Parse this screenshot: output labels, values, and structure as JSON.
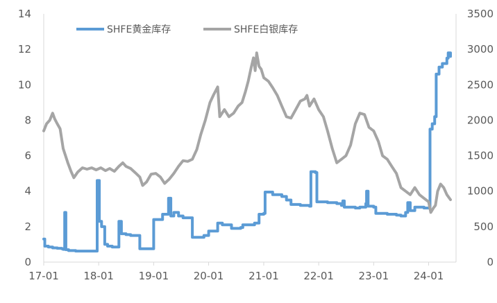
{
  "chart_data": {
    "type": "line",
    "title": "",
    "x_ticks": [
      "17-01",
      "18-01",
      "19-01",
      "20-01",
      "21-01",
      "22-01",
      "23-01",
      "24-01"
    ],
    "y_left": {
      "label": "",
      "range": [
        0,
        14
      ],
      "ticks": [
        0,
        2,
        4,
        6,
        8,
        10,
        12,
        14
      ]
    },
    "y_right": {
      "label": "",
      "range": [
        0,
        3500
      ],
      "ticks": [
        0,
        500,
        1000,
        1500,
        2000,
        2500,
        3000,
        3500
      ]
    },
    "legend_position": "top",
    "grid": false,
    "series": [
      {
        "name": "SHFE黄金库存",
        "axis": "left",
        "color": "#5B9BD5",
        "points": [
          [
            "2017-01-01",
            1.3
          ],
          [
            "2017-01-08",
            0.9
          ],
          [
            "2017-02-01",
            0.85
          ],
          [
            "2017-03-01",
            0.8
          ],
          [
            "2017-04-01",
            0.78
          ],
          [
            "2017-05-01",
            0.75
          ],
          [
            "2017-05-10",
            0.72
          ],
          [
            "2017-05-20",
            2.8
          ],
          [
            "2017-05-28",
            0.7
          ],
          [
            "2017-06-15",
            0.65
          ],
          [
            "2017-08-01",
            0.62
          ],
          [
            "2017-10-01",
            0.62
          ],
          [
            "2017-12-15",
            0.62
          ],
          [
            "2017-12-22",
            4.6
          ],
          [
            "2018-01-05",
            2.3
          ],
          [
            "2018-01-20",
            2.0
          ],
          [
            "2018-02-10",
            1.0
          ],
          [
            "2018-03-01",
            0.9
          ],
          [
            "2018-04-01",
            0.85
          ],
          [
            "2018-05-01",
            0.85
          ],
          [
            "2018-05-15",
            2.3
          ],
          [
            "2018-06-01",
            1.6
          ],
          [
            "2018-07-01",
            1.55
          ],
          [
            "2018-08-01",
            1.5
          ],
          [
            "2018-09-01",
            1.5
          ],
          [
            "2018-10-01",
            0.75
          ],
          [
            "2018-12-01",
            0.75
          ],
          [
            "2019-01-01",
            2.4
          ],
          [
            "2019-02-01",
            2.4
          ],
          [
            "2019-03-01",
            2.7
          ],
          [
            "2019-04-01",
            2.7
          ],
          [
            "2019-04-10",
            3.6
          ],
          [
            "2019-04-25",
            2.6
          ],
          [
            "2019-05-15",
            2.8
          ],
          [
            "2019-06-15",
            2.6
          ],
          [
            "2019-07-15",
            2.5
          ],
          [
            "2019-09-01",
            2.5
          ],
          [
            "2019-09-15",
            1.4
          ],
          [
            "2019-11-01",
            1.4
          ],
          [
            "2019-12-01",
            1.5
          ],
          [
            "2020-01-01",
            1.75
          ],
          [
            "2020-02-15",
            1.75
          ],
          [
            "2020-03-01",
            2.2
          ],
          [
            "2020-04-01",
            2.1
          ],
          [
            "2020-05-15",
            2.1
          ],
          [
            "2020-06-01",
            1.9
          ],
          [
            "2020-07-01",
            1.9
          ],
          [
            "2020-08-01",
            1.95
          ],
          [
            "2020-08-15",
            2.1
          ],
          [
            "2020-10-01",
            2.1
          ],
          [
            "2020-11-01",
            2.2
          ],
          [
            "2020-12-01",
            2.7
          ],
          [
            "2021-01-01",
            2.75
          ],
          [
            "2021-01-10",
            3.95
          ],
          [
            "2021-03-01",
            3.8
          ],
          [
            "2021-05-01",
            3.7
          ],
          [
            "2021-06-01",
            3.5
          ],
          [
            "2021-07-01",
            3.25
          ],
          [
            "2021-09-01",
            3.2
          ],
          [
            "2021-11-01",
            3.15
          ],
          [
            "2021-11-10",
            5.1
          ],
          [
            "2021-12-10",
            5.05
          ],
          [
            "2021-12-20",
            3.4
          ],
          [
            "2022-03-01",
            3.35
          ],
          [
            "2022-05-01",
            3.3
          ],
          [
            "2022-06-01",
            3.2
          ],
          [
            "2022-06-10",
            3.45
          ],
          [
            "2022-06-20",
            3.1
          ],
          [
            "2022-09-01",
            3.05
          ],
          [
            "2022-10-01",
            3.1
          ],
          [
            "2022-11-10",
            3.3
          ],
          [
            "2022-11-15",
            4.0
          ],
          [
            "2022-11-25",
            3.15
          ],
          [
            "2023-01-01",
            3.1
          ],
          [
            "2023-01-15",
            2.75
          ],
          [
            "2023-04-01",
            2.7
          ],
          [
            "2023-06-01",
            2.65
          ],
          [
            "2023-07-01",
            2.6
          ],
          [
            "2023-08-01",
            2.8
          ],
          [
            "2023-08-15",
            3.35
          ],
          [
            "2023-09-01",
            2.9
          ],
          [
            "2023-10-01",
            3.1
          ],
          [
            "2023-12-01",
            3.05
          ],
          [
            "2024-01-05",
            3.05
          ],
          [
            "2024-01-10",
            7.5
          ],
          [
            "2024-01-25",
            7.8
          ],
          [
            "2024-02-10",
            8.2
          ],
          [
            "2024-02-20",
            10.6
          ],
          [
            "2024-03-10",
            11.0
          ],
          [
            "2024-04-01",
            11.2
          ],
          [
            "2024-05-01",
            11.5
          ],
          [
            "2024-05-10",
            11.8
          ],
          [
            "2024-05-25",
            11.6
          ]
        ]
      },
      {
        "name": "SHFE白银库存",
        "axis": "right",
        "color": "#A5A5A5",
        "points": [
          [
            "2017-01-01",
            1850
          ],
          [
            "2017-01-20",
            1950
          ],
          [
            "2017-02-10",
            2000
          ],
          [
            "2017-03-01",
            2100
          ],
          [
            "2017-03-15",
            2020
          ],
          [
            "2017-04-01",
            1950
          ],
          [
            "2017-04-20",
            1880
          ],
          [
            "2017-05-10",
            1600
          ],
          [
            "2017-06-10",
            1400
          ],
          [
            "2017-07-01",
            1280
          ],
          [
            "2017-07-20",
            1190
          ],
          [
            "2017-08-15",
            1270
          ],
          [
            "2017-09-15",
            1330
          ],
          [
            "2017-10-15",
            1310
          ],
          [
            "2017-11-15",
            1330
          ],
          [
            "2017-12-15",
            1300
          ],
          [
            "2018-01-15",
            1330
          ],
          [
            "2018-02-15",
            1290
          ],
          [
            "2018-03-15",
            1320
          ],
          [
            "2018-04-15",
            1280
          ],
          [
            "2018-05-15",
            1350
          ],
          [
            "2018-06-10",
            1400
          ],
          [
            "2018-07-01",
            1350
          ],
          [
            "2018-08-01",
            1320
          ],
          [
            "2018-09-01",
            1260
          ],
          [
            "2018-10-01",
            1200
          ],
          [
            "2018-10-20",
            1080
          ],
          [
            "2018-11-15",
            1130
          ],
          [
            "2018-12-15",
            1240
          ],
          [
            "2019-01-15",
            1250
          ],
          [
            "2019-02-15",
            1200
          ],
          [
            "2019-03-15",
            1110
          ],
          [
            "2019-04-15",
            1170
          ],
          [
            "2019-05-15",
            1250
          ],
          [
            "2019-06-15",
            1350
          ],
          [
            "2019-07-15",
            1430
          ],
          [
            "2019-08-15",
            1420
          ],
          [
            "2019-09-15",
            1450
          ],
          [
            "2019-10-15",
            1590
          ],
          [
            "2019-11-10",
            1800
          ],
          [
            "2019-12-10",
            2000
          ],
          [
            "2020-01-10",
            2250
          ],
          [
            "2020-02-01",
            2350
          ],
          [
            "2020-03-01",
            2470
          ],
          [
            "2020-03-15",
            2050
          ],
          [
            "2020-04-15",
            2150
          ],
          [
            "2020-05-15",
            2050
          ],
          [
            "2020-06-15",
            2100
          ],
          [
            "2020-07-15",
            2200
          ],
          [
            "2020-08-10",
            2250
          ],
          [
            "2020-09-01",
            2400
          ],
          [
            "2020-09-20",
            2550
          ],
          [
            "2020-10-10",
            2750
          ],
          [
            "2020-10-25",
            2880
          ],
          [
            "2020-11-05",
            2700
          ],
          [
            "2020-11-15",
            2950
          ],
          [
            "2020-12-01",
            2760
          ],
          [
            "2020-12-15",
            2720
          ],
          [
            "2021-01-01",
            2600
          ],
          [
            "2021-02-01",
            2550
          ],
          [
            "2021-03-01",
            2460
          ],
          [
            "2021-04-01",
            2350
          ],
          [
            "2021-05-01",
            2200
          ],
          [
            "2021-06-01",
            2050
          ],
          [
            "2021-07-01",
            2030
          ],
          [
            "2021-08-01",
            2150
          ],
          [
            "2021-09-01",
            2270
          ],
          [
            "2021-10-01",
            2300
          ],
          [
            "2021-10-15",
            2350
          ],
          [
            "2021-11-01",
            2200
          ],
          [
            "2021-12-01",
            2300
          ],
          [
            "2022-01-01",
            2150
          ],
          [
            "2022-02-01",
            2050
          ],
          [
            "2022-03-01",
            1850
          ],
          [
            "2022-04-01",
            1600
          ],
          [
            "2022-05-01",
            1400
          ],
          [
            "2022-06-01",
            1450
          ],
          [
            "2022-07-01",
            1500
          ],
          [
            "2022-08-01",
            1650
          ],
          [
            "2022-09-01",
            1950
          ],
          [
            "2022-10-01",
            2100
          ],
          [
            "2022-11-01",
            2080
          ],
          [
            "2022-12-01",
            1900
          ],
          [
            "2023-01-01",
            1850
          ],
          [
            "2023-02-01",
            1700
          ],
          [
            "2023-03-01",
            1500
          ],
          [
            "2023-04-01",
            1450
          ],
          [
            "2023-05-01",
            1350
          ],
          [
            "2023-06-01",
            1250
          ],
          [
            "2023-07-01",
            1050
          ],
          [
            "2023-08-01",
            1000
          ],
          [
            "2023-09-01",
            950
          ],
          [
            "2023-10-01",
            1050
          ],
          [
            "2023-11-01",
            950
          ],
          [
            "2023-12-01",
            900
          ],
          [
            "2024-01-01",
            850
          ],
          [
            "2024-01-15",
            700
          ],
          [
            "2024-02-01",
            760
          ],
          [
            "2024-02-15",
            800
          ],
          [
            "2024-03-01",
            1000
          ],
          [
            "2024-03-20",
            1100
          ],
          [
            "2024-04-10",
            1050
          ],
          [
            "2024-05-01",
            950
          ],
          [
            "2024-05-25",
            880
          ]
        ]
      }
    ]
  }
}
